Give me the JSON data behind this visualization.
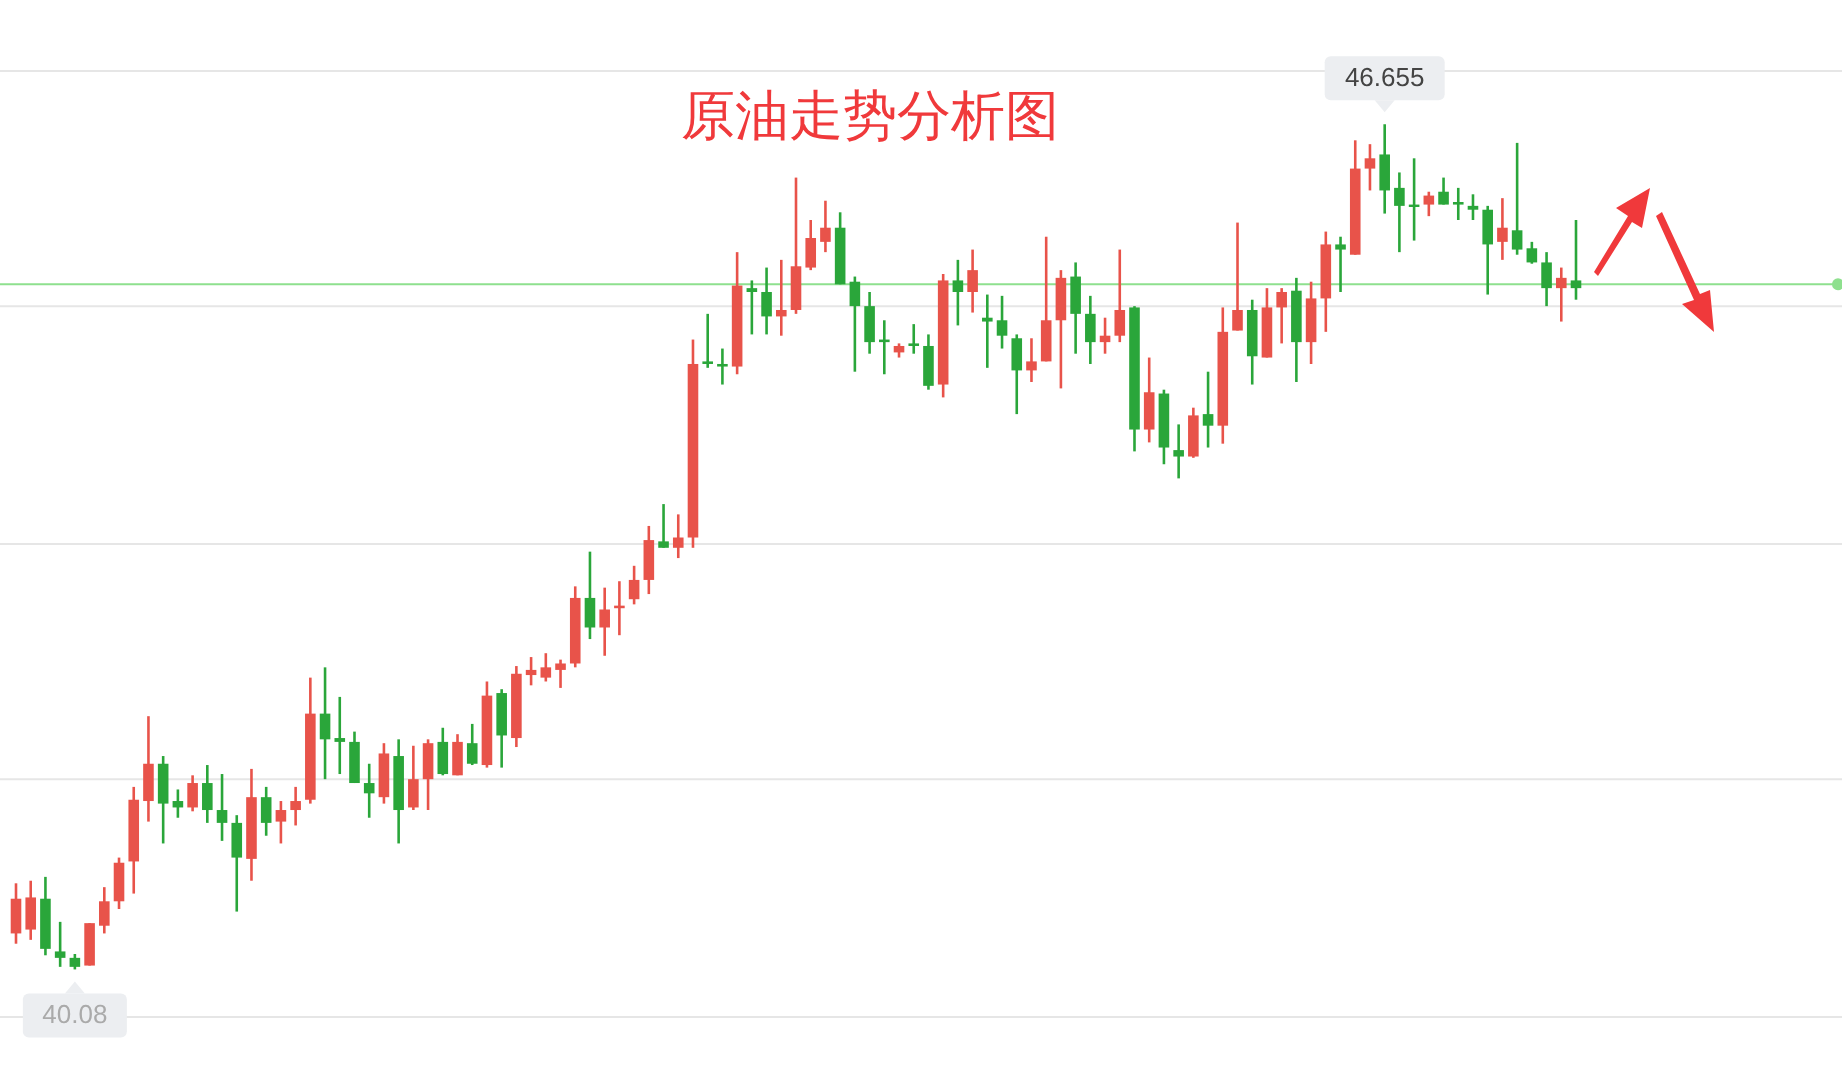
{
  "chart_data": {
    "type": "candlestick",
    "title": "原油走势分析图",
    "categories": [
      null,
      null,
      null,
      null,
      null,
      null,
      null,
      null,
      null,
      null,
      null,
      null,
      null,
      null,
      null,
      null,
      null,
      null,
      null,
      null,
      null,
      null,
      null,
      null,
      null,
      null,
      null,
      null,
      null,
      null,
      null,
      null,
      null,
      null,
      null,
      null,
      null,
      null,
      null,
      null,
      null,
      null,
      null,
      null,
      null,
      null,
      null,
      null,
      null,
      null,
      null,
      null,
      null,
      null,
      null,
      null,
      null,
      null,
      null,
      null,
      null,
      null,
      null,
      null,
      null,
      null,
      null,
      null,
      null,
      null,
      null,
      null,
      null,
      null,
      null,
      null,
      null,
      null,
      null,
      null,
      null,
      null,
      null,
      null,
      null,
      null,
      null,
      null,
      null,
      null,
      null,
      null,
      null,
      null,
      null,
      null,
      null,
      null,
      null,
      null,
      null,
      null,
      null,
      null,
      null,
      null,
      null
    ],
    "ohlc": [
      [
        40.36,
        40.75,
        40.28,
        40.63
      ],
      [
        40.39,
        40.77,
        40.31,
        40.64
      ],
      [
        40.63,
        40.8,
        40.19,
        40.24
      ],
      [
        40.22,
        40.45,
        40.1,
        40.17
      ],
      [
        40.17,
        40.2,
        40.08,
        40.1
      ],
      [
        40.11,
        40.44,
        40.11,
        40.44
      ],
      [
        40.42,
        40.72,
        40.36,
        40.61
      ],
      [
        40.61,
        40.95,
        40.55,
        40.91
      ],
      [
        40.92,
        41.5,
        40.67,
        41.4
      ],
      [
        41.39,
        42.05,
        41.23,
        41.68
      ],
      [
        41.68,
        41.74,
        41.06,
        41.37
      ],
      [
        41.39,
        41.48,
        41.26,
        41.34
      ],
      [
        41.34,
        41.59,
        41.31,
        41.53
      ],
      [
        41.53,
        41.67,
        41.22,
        41.32
      ],
      [
        41.32,
        41.6,
        41.08,
        41.22
      ],
      [
        41.22,
        41.28,
        40.53,
        40.95
      ],
      [
        40.94,
        41.64,
        40.77,
        41.42
      ],
      [
        41.42,
        41.5,
        41.12,
        41.22
      ],
      [
        41.23,
        41.39,
        41.06,
        41.32
      ],
      [
        41.32,
        41.5,
        41.2,
        41.39
      ],
      [
        41.4,
        42.35,
        41.37,
        42.07
      ],
      [
        42.07,
        42.43,
        41.56,
        41.87
      ],
      [
        41.88,
        42.2,
        41.6,
        41.85
      ],
      [
        41.85,
        41.93,
        41.53,
        41.53
      ],
      [
        41.53,
        41.68,
        41.26,
        41.45
      ],
      [
        41.42,
        41.84,
        41.37,
        41.76
      ],
      [
        41.74,
        41.87,
        41.06,
        41.32
      ],
      [
        41.34,
        41.82,
        41.32,
        41.56
      ],
      [
        41.56,
        41.87,
        41.32,
        41.84
      ],
      [
        41.85,
        41.96,
        41.59,
        41.6
      ],
      [
        41.59,
        41.91,
        41.59,
        41.85
      ],
      [
        41.84,
        41.99,
        41.67,
        41.68
      ],
      [
        41.67,
        42.32,
        41.65,
        42.21
      ],
      [
        42.23,
        42.26,
        41.65,
        41.9
      ],
      [
        41.88,
        42.44,
        41.81,
        42.38
      ],
      [
        42.37,
        42.51,
        42.29,
        42.41
      ],
      [
        42.35,
        42.54,
        42.32,
        42.43
      ],
      [
        42.41,
        42.49,
        42.27,
        42.46
      ],
      [
        42.46,
        43.06,
        42.43,
        42.97
      ],
      [
        42.97,
        43.33,
        42.65,
        42.74
      ],
      [
        42.74,
        43.05,
        42.52,
        42.88
      ],
      [
        42.89,
        43.1,
        42.68,
        42.91
      ],
      [
        42.96,
        43.22,
        42.92,
        43.11
      ],
      [
        43.11,
        43.53,
        43.0,
        43.42
      ],
      [
        43.41,
        43.7,
        43.36,
        43.36
      ],
      [
        43.36,
        43.62,
        43.28,
        43.44
      ],
      [
        43.44,
        44.98,
        43.36,
        44.79
      ],
      [
        44.81,
        45.18,
        44.76,
        44.79
      ],
      [
        44.79,
        44.91,
        44.63,
        44.77
      ],
      [
        44.77,
        45.66,
        44.71,
        45.4
      ],
      [
        45.38,
        45.44,
        45.02,
        45.35
      ],
      [
        45.35,
        45.54,
        45.02,
        45.16
      ],
      [
        45.16,
        45.6,
        45.01,
        45.21
      ],
      [
        45.21,
        46.24,
        45.18,
        45.55
      ],
      [
        45.54,
        45.91,
        45.52,
        45.77
      ],
      [
        45.74,
        46.06,
        45.66,
        45.85
      ],
      [
        45.85,
        45.97,
        45.41,
        45.41
      ],
      [
        45.43,
        45.47,
        44.73,
        45.24
      ],
      [
        45.24,
        45.35,
        44.87,
        44.96
      ],
      [
        44.98,
        45.13,
        44.71,
        44.96
      ],
      [
        44.88,
        44.95,
        44.84,
        44.93
      ],
      [
        44.95,
        45.1,
        44.87,
        44.93
      ],
      [
        44.93,
        45.02,
        44.59,
        44.62
      ],
      [
        44.63,
        45.49,
        44.53,
        45.44
      ],
      [
        45.44,
        45.6,
        45.09,
        45.35
      ],
      [
        45.35,
        45.68,
        45.19,
        45.52
      ],
      [
        45.15,
        45.33,
        44.76,
        45.12
      ],
      [
        45.13,
        45.32,
        44.91,
        45.01
      ],
      [
        44.99,
        45.02,
        44.4,
        44.74
      ],
      [
        44.74,
        44.99,
        44.65,
        44.81
      ],
      [
        44.81,
        45.78,
        44.81,
        45.13
      ],
      [
        45.13,
        45.52,
        44.6,
        45.46
      ],
      [
        45.47,
        45.58,
        44.87,
        45.18
      ],
      [
        45.18,
        45.32,
        44.79,
        44.96
      ],
      [
        44.96,
        45.15,
        44.87,
        45.01
      ],
      [
        45.01,
        45.68,
        44.96,
        45.21
      ],
      [
        45.23,
        45.24,
        44.11,
        44.28
      ],
      [
        44.28,
        44.84,
        44.18,
        44.57
      ],
      [
        44.56,
        44.59,
        44.01,
        44.14
      ],
      [
        44.12,
        44.32,
        43.9,
        44.07
      ],
      [
        44.07,
        44.45,
        44.06,
        44.39
      ],
      [
        44.4,
        44.73,
        44.14,
        44.31
      ],
      [
        44.31,
        45.23,
        44.17,
        45.04
      ],
      [
        45.05,
        45.89,
        45.05,
        45.21
      ],
      [
        45.21,
        45.29,
        44.63,
        44.85
      ],
      [
        44.84,
        45.38,
        44.84,
        45.23
      ],
      [
        45.23,
        45.38,
        44.95,
        45.35
      ],
      [
        45.36,
        45.46,
        44.65,
        44.96
      ],
      [
        44.96,
        45.43,
        44.79,
        45.3
      ],
      [
        45.3,
        45.82,
        45.04,
        45.72
      ],
      [
        45.72,
        45.78,
        45.35,
        45.68
      ],
      [
        45.64,
        46.53,
        45.64,
        46.31
      ],
      [
        46.31,
        46.5,
        46.14,
        46.39
      ],
      [
        46.42,
        46.655,
        45.96,
        46.14
      ],
      [
        46.16,
        46.28,
        45.66,
        46.02
      ],
      [
        46.03,
        46.39,
        45.75,
        46.02
      ],
      [
        46.03,
        46.13,
        45.94,
        46.1
      ],
      [
        46.13,
        46.24,
        46.03,
        46.03
      ],
      [
        46.05,
        46.16,
        45.91,
        46.03
      ],
      [
        46.02,
        46.11,
        45.91,
        45.99
      ],
      [
        45.99,
        46.02,
        45.33,
        45.72
      ],
      [
        45.74,
        46.08,
        45.6,
        45.85
      ],
      [
        45.83,
        46.51,
        45.64,
        45.68
      ],
      [
        45.69,
        45.74,
        45.57,
        45.58
      ],
      [
        45.58,
        45.66,
        45.24,
        45.38
      ],
      [
        45.38,
        45.54,
        45.12,
        45.46
      ],
      [
        45.44,
        45.91,
        45.29,
        45.38
      ]
    ],
    "colors": [
      "#e8534a",
      "#e8534a",
      "#2aa63a",
      "#2aa63a",
      "#2aa63a",
      "#e8534a",
      "#e8534a",
      "#e8534a",
      "#e8534a",
      "#e8534a",
      "#2aa63a",
      "#2aa63a",
      "#e8534a",
      "#2aa63a",
      "#2aa63a",
      "#2aa63a",
      "#e8534a",
      "#2aa63a",
      "#e8534a",
      "#e8534a",
      "#e8534a",
      "#2aa63a",
      "#2aa63a",
      "#2aa63a",
      "#2aa63a",
      "#e8534a",
      "#2aa63a",
      "#e8534a",
      "#e8534a",
      "#2aa63a",
      "#e8534a",
      "#2aa63a",
      "#e8534a",
      "#2aa63a",
      "#e8534a",
      "#e8534a",
      "#e8534a",
      "#e8534a",
      "#e8534a",
      "#2aa63a",
      "#e8534a",
      "#e8534a",
      "#e8534a",
      "#e8534a",
      "#2aa63a",
      "#e8534a",
      "#e8534a",
      "#2aa63a",
      "#2aa63a",
      "#e8534a",
      "#2aa63a",
      "#2aa63a",
      "#e8534a",
      "#e8534a",
      "#e8534a",
      "#e8534a",
      "#2aa63a",
      "#2aa63a",
      "#2aa63a",
      "#2aa63a",
      "#e8534a",
      "#2aa63a",
      "#2aa63a",
      "#e8534a",
      "#2aa63a",
      "#e8534a",
      "#2aa63a",
      "#2aa63a",
      "#2aa63a",
      "#e8534a",
      "#e8534a",
      "#e8534a",
      "#2aa63a",
      "#2aa63a",
      "#e8534a",
      "#e8534a",
      "#2aa63a",
      "#e8534a",
      "#2aa63a",
      "#2aa63a",
      "#e8534a",
      "#2aa63a",
      "#e8534a",
      "#e8534a",
      "#2aa63a",
      "#e8534a",
      "#e8534a",
      "#2aa63a",
      "#e8534a",
      "#e8534a",
      "#2aa63a",
      "#e8534a",
      "#e8534a",
      "#2aa63a",
      "#2aa63a",
      "#2aa63a",
      "#e8534a",
      "#2aa63a",
      "#2aa63a",
      "#2aa63a",
      "#2aa63a",
      "#e8534a",
      "#2aa63a",
      "#2aa63a",
      "#2aa63a",
      "#e8534a",
      "#2aa63a"
    ],
    "yticks": [
      {
        "value": 47.07,
        "label": null
      },
      {
        "value": 45.24,
        "label": null
      },
      {
        "value": 43.39,
        "label": null
      },
      {
        "value": 41.56,
        "label": null
      },
      {
        "value": 39.71,
        "label": null
      }
    ],
    "grid": "y",
    "ref_lines": [
      {
        "axis": "y",
        "value": 45.41,
        "color": "#8ee08e"
      }
    ],
    "annotations": [
      {
        "text": "46.655",
        "y": 46.655
      },
      {
        "text": "40.08",
        "y": 40.08
      }
    ]
  }
}
